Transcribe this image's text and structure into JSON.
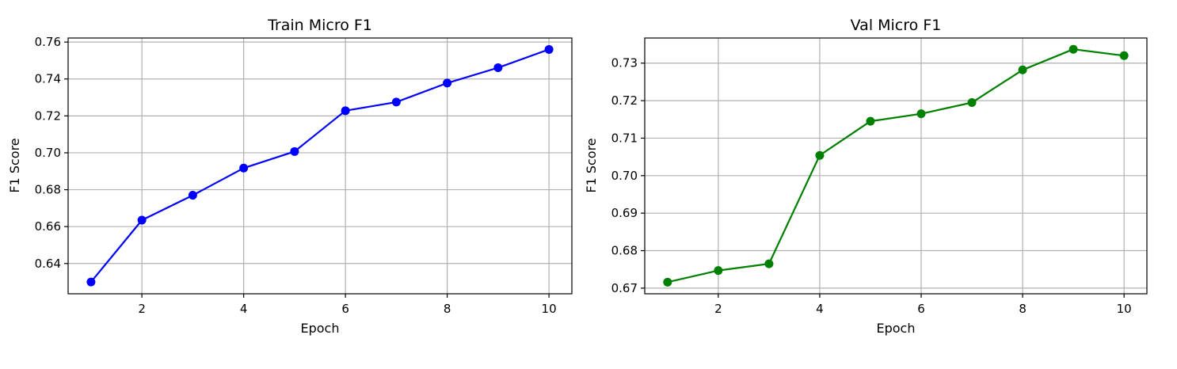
{
  "chart_data": [
    {
      "type": "line",
      "title": "Train Micro F1",
      "xlabel": "Epoch",
      "ylabel": "F1 Score",
      "x": [
        1,
        2,
        3,
        4,
        5,
        6,
        7,
        8,
        9,
        10
      ],
      "series": [
        {
          "values": [
            0.63,
            0.6635,
            0.677,
            0.6917,
            0.7007,
            0.7228,
            0.7275,
            0.7378,
            0.7461,
            0.756
          ],
          "color": "#0000ff",
          "marker": "circle"
        }
      ],
      "xlim": [
        0.55,
        10.45
      ],
      "ylim": [
        0.6236,
        0.7622
      ],
      "xticks": [
        2,
        4,
        6,
        8,
        10
      ],
      "xtick_labels": [
        "2",
        "4",
        "6",
        "8",
        "10"
      ],
      "yticks": [
        0.64,
        0.66,
        0.68,
        0.7,
        0.72,
        0.74,
        0.76
      ],
      "ytick_labels": [
        "0.64",
        "0.66",
        "0.68",
        "0.70",
        "0.72",
        "0.74",
        "0.76"
      ],
      "grid": true
    },
    {
      "type": "line",
      "title": "Val Micro F1",
      "xlabel": "Epoch",
      "ylabel": "F1 Score",
      "x": [
        1,
        2,
        3,
        4,
        5,
        6,
        7,
        8,
        9,
        10
      ],
      "series": [
        {
          "values": [
            0.6716,
            0.6747,
            0.6765,
            0.7054,
            0.7145,
            0.7165,
            0.7195,
            0.7282,
            0.7337,
            0.732
          ],
          "color": "#008000",
          "marker": "circle"
        }
      ],
      "xlim": [
        0.55,
        10.45
      ],
      "ylim": [
        0.6685,
        0.7367
      ],
      "xticks": [
        2,
        4,
        6,
        8,
        10
      ],
      "xtick_labels": [
        "2",
        "4",
        "6",
        "8",
        "10"
      ],
      "yticks": [
        0.67,
        0.68,
        0.69,
        0.7,
        0.71,
        0.72,
        0.73
      ],
      "ytick_labels": [
        "0.67",
        "0.68",
        "0.69",
        "0.70",
        "0.71",
        "0.72",
        "0.73"
      ],
      "grid": true
    }
  ]
}
